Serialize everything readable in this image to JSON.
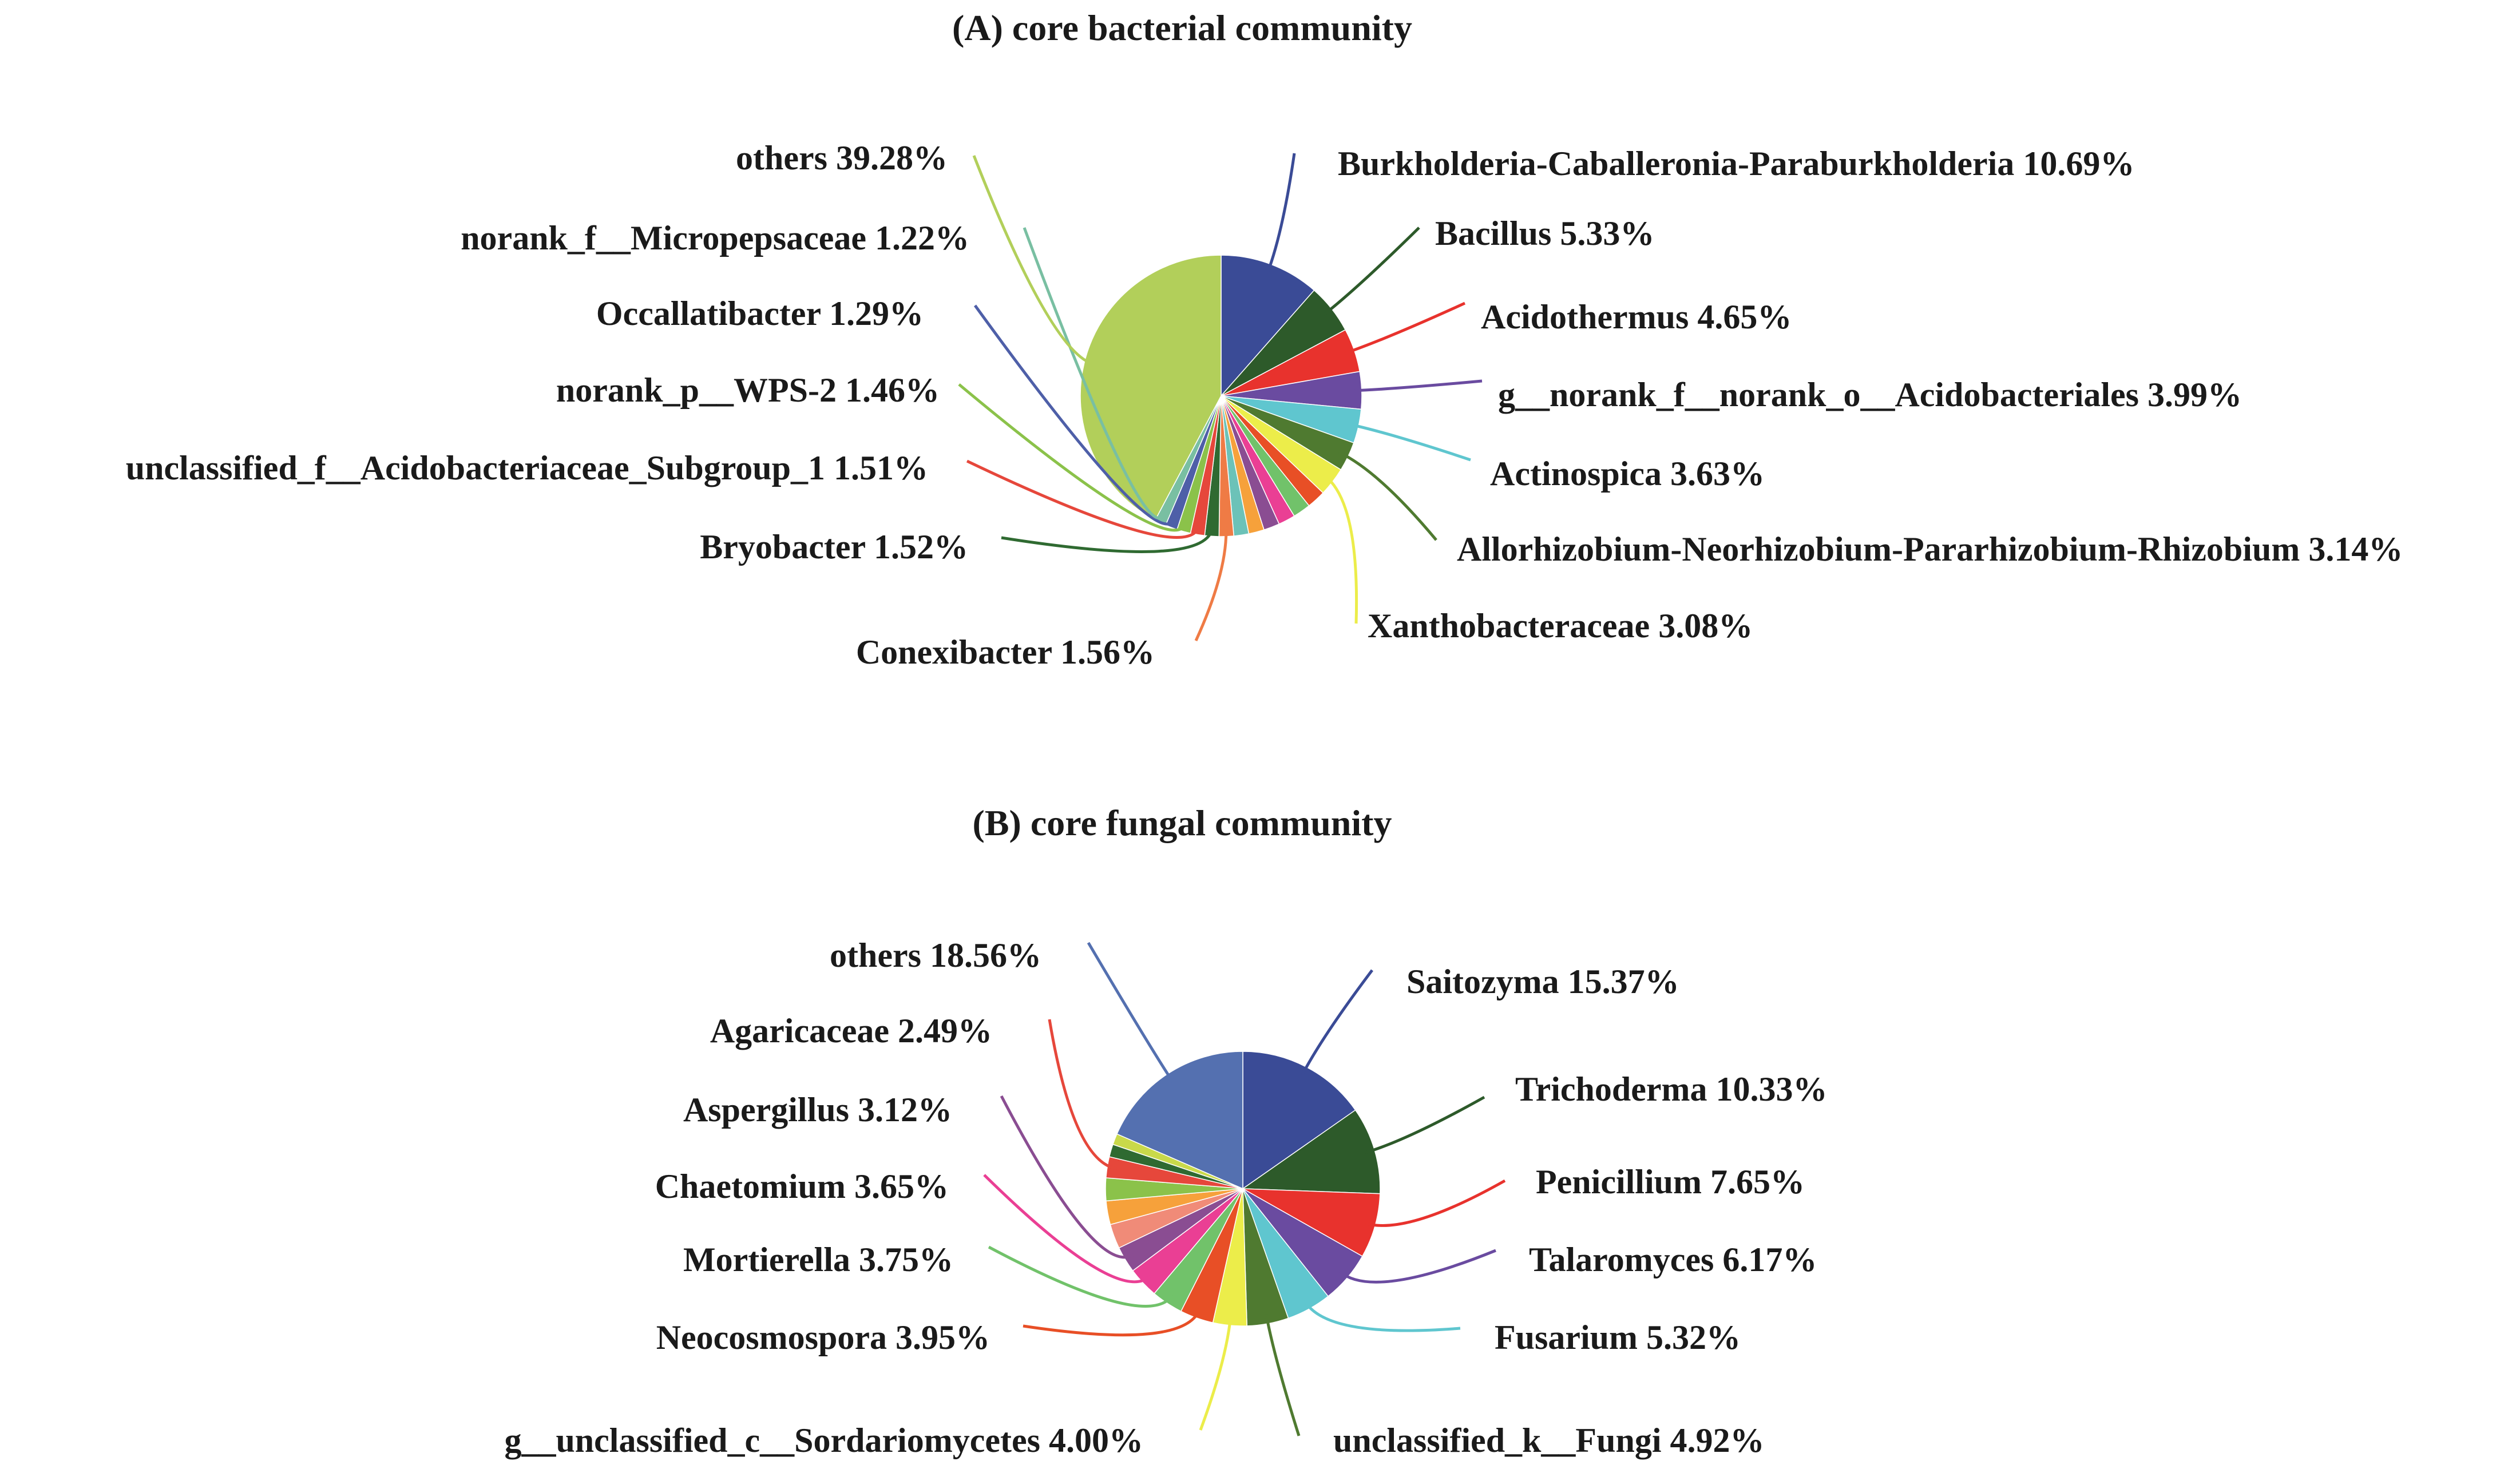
{
  "chart_data": [
    {
      "type": "pie",
      "title": "(A) core bacterial community",
      "slices": [
        {
          "label": "Burkholderia-Caballeronia-Paraburkholderia",
          "value": 10.69,
          "value_text": "10.69%",
          "color": "#3a4b96"
        },
        {
          "label": "Bacillus",
          "value": 5.33,
          "value_text": "5.33%",
          "color": "#2d5a2a"
        },
        {
          "label": "Acidothermus",
          "value": 4.65,
          "value_text": "4.65%",
          "color": "#e8322d"
        },
        {
          "label": "g__norank_f__norank_o__Acidobacteriales",
          "value": 3.99,
          "value_text": "3.99%",
          "color": "#6a4ba0"
        },
        {
          "label": "Actinospica",
          "value": 3.63,
          "value_text": "3.63%",
          "color": "#5fc6cf"
        },
        {
          "label": "Allorhizobium-Neorhizobium-Pararhizobium-Rhizobium",
          "value": 3.14,
          "value_text": "3.14%",
          "color": "#4f7a30"
        },
        {
          "label": "Xanthobacteraceae",
          "value": 3.08,
          "value_text": "3.08%",
          "color": "#eced4a"
        },
        {
          "label": "",
          "value": 2.0,
          "value_text": "",
          "color": "#e84f26"
        },
        {
          "label": "",
          "value": 1.9,
          "value_text": "",
          "color": "#71c26a"
        },
        {
          "label": "",
          "value": 1.8,
          "value_text": "",
          "color": "#ea3f94"
        },
        {
          "label": "",
          "value": 1.7,
          "value_text": "",
          "color": "#8a4d92"
        },
        {
          "label": "",
          "value": 1.65,
          "value_text": "",
          "color": "#f6a13b"
        },
        {
          "label": "",
          "value": 1.6,
          "value_text": "",
          "color": "#6cc2b8"
        },
        {
          "label": "Conexibacter",
          "value": 1.56,
          "value_text": "1.56%",
          "color": "#ef7b45"
        },
        {
          "label": "Bryobacter",
          "value": 1.52,
          "value_text": "1.52%",
          "color": "#2f6a31"
        },
        {
          "label": "unclassified_f__Acidobacteriaceae_Subgroup_1",
          "value": 1.51,
          "value_text": "1.51%",
          "color": "#e6473b"
        },
        {
          "label": "norank_p__WPS-2",
          "value": 1.46,
          "value_text": "1.46%",
          "color": "#8bc24a"
        },
        {
          "label": "Occallatibacter",
          "value": 1.29,
          "value_text": "1.29%",
          "color": "#4e5fa8"
        },
        {
          "label": "norank_f__Micropepsaceae",
          "value": 1.22,
          "value_text": "1.22%",
          "color": "#79bfa2"
        },
        {
          "label": "others",
          "value": 39.28,
          "value_text": "39.28%",
          "color": "#b2cf5a"
        }
      ]
    },
    {
      "type": "pie",
      "title": "(B) core fungal community",
      "slices": [
        {
          "label": "Saitozyma",
          "value": 15.37,
          "value_text": "15.37%",
          "color": "#3a4b96"
        },
        {
          "label": "Trichoderma",
          "value": 10.33,
          "value_text": "10.33%",
          "color": "#2d5a2a"
        },
        {
          "label": "Penicillium",
          "value": 7.65,
          "value_text": "7.65%",
          "color": "#e8322d"
        },
        {
          "label": "Talaromyces",
          "value": 6.17,
          "value_text": "6.17%",
          "color": "#6a4ba0"
        },
        {
          "label": "Fusarium",
          "value": 5.32,
          "value_text": "5.32%",
          "color": "#5fc6cf"
        },
        {
          "label": "unclassified_k__Fungi",
          "value": 4.92,
          "value_text": "4.92%",
          "color": "#4f7a30"
        },
        {
          "label": "g__unclassified_c__Sordariomycetes",
          "value": 4.0,
          "value_text": "4.00%",
          "color": "#eced4a"
        },
        {
          "label": "Neocosmospora",
          "value": 3.95,
          "value_text": "3.95%",
          "color": "#e84f26"
        },
        {
          "label": "Mortierella",
          "value": 3.75,
          "value_text": "3.75%",
          "color": "#71c26a"
        },
        {
          "label": "Chaetomium",
          "value": 3.65,
          "value_text": "3.65%",
          "color": "#ea3f94"
        },
        {
          "label": "Aspergillus",
          "value": 3.12,
          "value_text": "3.12%",
          "color": "#8a4d92"
        },
        {
          "label": "",
          "value": 2.9,
          "value_text": "",
          "color": "#f08b78"
        },
        {
          "label": "",
          "value": 2.8,
          "value_text": "",
          "color": "#f6a13b"
        },
        {
          "label": "",
          "value": 2.7,
          "value_text": "",
          "color": "#8bc24a"
        },
        {
          "label": "Agaricaceae",
          "value": 2.49,
          "value_text": "2.49%",
          "color": "#e6473b"
        },
        {
          "label": "",
          "value": 1.5,
          "value_text": "",
          "color": "#2f6a31"
        },
        {
          "label": "",
          "value": 1.3,
          "value_text": "",
          "color": "#c9d94a"
        },
        {
          "label": "others",
          "value": 18.56,
          "value_text": "18.56%",
          "color": "#5470b0"
        }
      ]
    }
  ]
}
